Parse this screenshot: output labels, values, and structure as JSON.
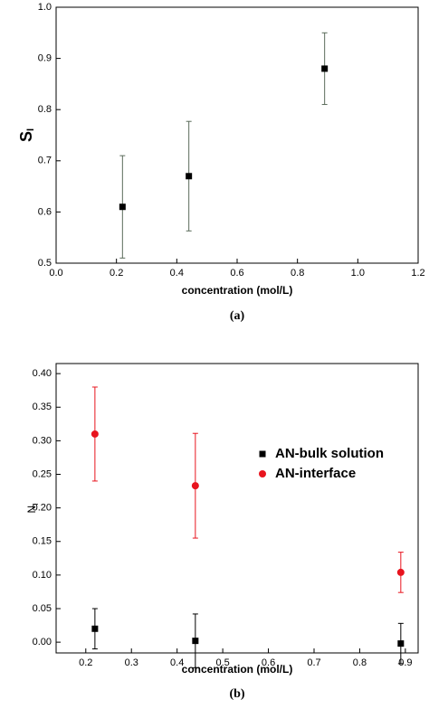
{
  "chart_data": [
    {
      "type": "scatter",
      "ylabel": "S",
      "ylabel_sub": "I",
      "xlabel": "concentration (mol/L)",
      "caption": "(a)",
      "xlim": [
        0,
        1.2
      ],
      "ylim": [
        0.5,
        1.0
      ],
      "xticks": [
        {
          "value": 0,
          "label": "0.0"
        },
        0.2,
        0.4,
        0.6,
        0.8,
        {
          "value": 1,
          "label": "1.0"
        },
        1.2
      ],
      "yticks": [
        0.5,
        0.6,
        0.7,
        0.8,
        0.9,
        {
          "value": 1,
          "label": "1.0"
        }
      ],
      "series": [
        {
          "color": "#000000",
          "errcolor": "#5a6b5a",
          "marker": "square",
          "x": [
            0.22,
            0.44,
            0.89
          ],
          "values": [
            0.61,
            0.67,
            0.88
          ],
          "errors": [
            0.1,
            0.107,
            0.07
          ]
        }
      ]
    },
    {
      "type": "scatter",
      "ylabel": "N",
      "ylabel_sub": "I",
      "xlabel": "concentration (mol/L)",
      "caption": "(b)",
      "xlim": [
        0.135,
        0.928
      ],
      "ylim": [
        -0.016,
        0.415
      ],
      "xticks": [
        0.2,
        0.3,
        0.4,
        0.5,
        0.6,
        0.7,
        0.8,
        0.9
      ],
      "yticks": [
        {
          "value": 0,
          "label": "0.00"
        },
        0.05,
        {
          "value": 0.1,
          "label": "0.10"
        },
        0.15,
        {
          "value": 0.2,
          "label": "0.20"
        },
        0.25,
        {
          "value": 0.3,
          "label": "0.30"
        },
        0.35,
        {
          "value": 0.4,
          "label": "0.40"
        }
      ],
      "series": [
        {
          "name": "AN-bulk solution",
          "color": "#000000",
          "errcolor": "#000000",
          "marker": "square",
          "x": [
            0.22,
            0.44,
            0.89
          ],
          "values": [
            0.02,
            0.002,
            -0.002
          ],
          "errors": [
            0.03,
            0.04,
            0.03
          ]
        },
        {
          "name": "AN-interface",
          "color": "#e8141e",
          "errcolor": "#e8141e",
          "marker": "circle",
          "x": [
            0.22,
            0.44,
            0.89
          ],
          "values": [
            0.31,
            0.233,
            0.104
          ],
          "errors": [
            0.07,
            0.078,
            0.03
          ]
        }
      ]
    }
  ]
}
